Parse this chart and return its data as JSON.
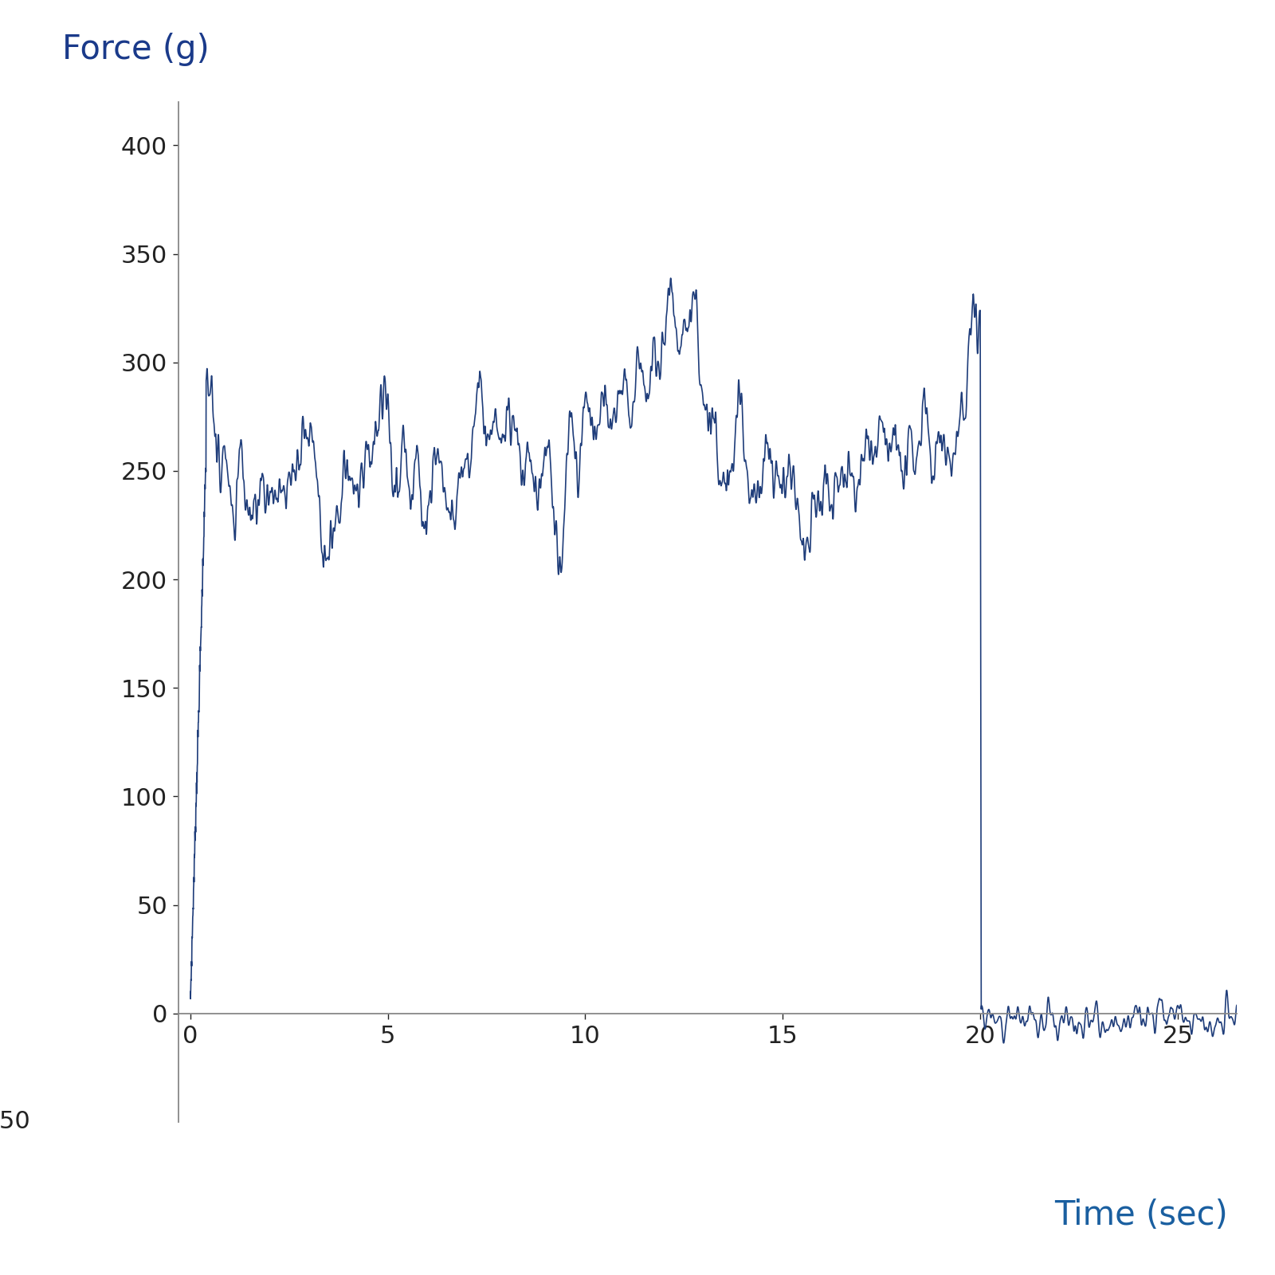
{
  "ylabel": "Force (g)",
  "xlabel": "Time (sec)",
  "ylabel_color": "#1a3a8a",
  "xlabel_color": "#1a5fa0",
  "line_color": "#1f3d7a",
  "line_width": 1.2,
  "ylim": [
    -50,
    420
  ],
  "xlim": [
    -0.3,
    26.5
  ],
  "yticks": [
    0,
    50,
    100,
    150,
    200,
    250,
    300,
    350,
    400
  ],
  "xticks": [
    0,
    5,
    10,
    15,
    20,
    25
  ],
  "axis_color": "#888888",
  "tick_color": "#222222",
  "ylabel_fontsize": 30,
  "xlabel_fontsize": 30,
  "tick_fontsize": 22,
  "background_color": "#ffffff",
  "noise_seed": 7,
  "sample_rate": 200,
  "total_time": 26.5
}
